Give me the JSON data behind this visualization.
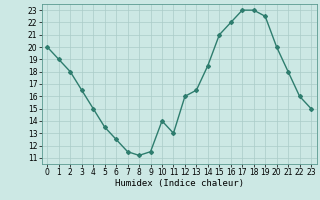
{
  "x": [
    0,
    1,
    2,
    3,
    4,
    5,
    6,
    7,
    8,
    9,
    10,
    11,
    12,
    13,
    14,
    15,
    16,
    17,
    18,
    19,
    20,
    21,
    22,
    23
  ],
  "y": [
    20,
    19,
    18,
    16.5,
    15,
    13.5,
    12.5,
    11.5,
    11.2,
    11.5,
    14,
    13,
    16,
    16.5,
    18.5,
    21,
    22,
    23,
    23,
    22.5,
    20,
    18,
    16,
    15
  ],
  "line_color": "#2e7d6e",
  "marker": "D",
  "marker_size": 2.0,
  "bg_color": "#cce8e4",
  "xlabel": "Humidex (Indice chaleur)",
  "xlim": [
    -0.5,
    23.5
  ],
  "ylim": [
    10.5,
    23.5
  ],
  "yticks": [
    11,
    12,
    13,
    14,
    15,
    16,
    17,
    18,
    19,
    20,
    21,
    22,
    23
  ],
  "xticks": [
    0,
    1,
    2,
    3,
    4,
    5,
    6,
    7,
    8,
    9,
    10,
    11,
    12,
    13,
    14,
    15,
    16,
    17,
    18,
    19,
    20,
    21,
    22,
    23
  ],
  "grid_color": "#aaccc8",
  "tick_fontsize": 5.5,
  "xlabel_fontsize": 6.5,
  "linewidth": 1.0
}
